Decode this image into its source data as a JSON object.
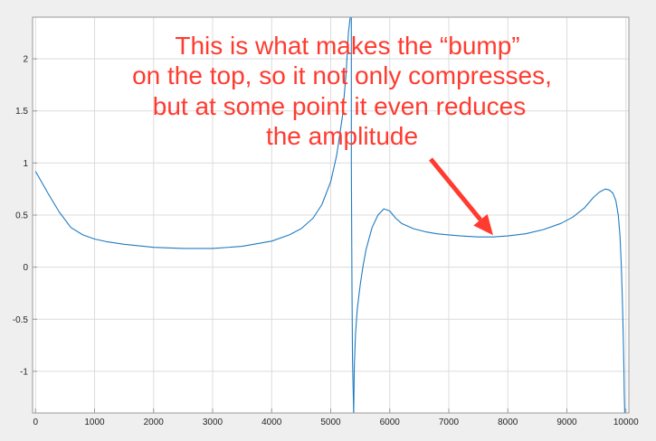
{
  "colors": {
    "figure_background": "#efefef",
    "axes_background": "#ffffff",
    "grid": "#dcdcdc",
    "axes_border": "#9a9a9a",
    "series": "#1f7bc1",
    "annotation": "#ff3b30"
  },
  "annotation": {
    "lines": [
      "This is what makes the “bump”",
      "on the top, so it not only compresses,",
      "but at some point it even reduces",
      "the amplitude"
    ],
    "arrow_target": {
      "x": 7750,
      "y": 0.29
    }
  },
  "chart_data": {
    "type": "line",
    "title": "",
    "xlabel": "",
    "ylabel": "",
    "xlim": [
      -50,
      10050
    ],
    "ylim": [
      -1.4,
      2.4
    ],
    "grid": true,
    "x_ticks": [
      0,
      1000,
      2000,
      3000,
      4000,
      5000,
      6000,
      7000,
      8000,
      9000,
      10000
    ],
    "x_tick_labels": [
      "0",
      "1000",
      "2000",
      "3000",
      "4000",
      "5000",
      "6000",
      "7000",
      "8000",
      "9000",
      "10000"
    ],
    "y_ticks": [
      -1,
      -0.5,
      0,
      0.5,
      1,
      1.5,
      2
    ],
    "y_tick_labels": [
      "-1",
      "-0.5",
      "0",
      "0.5",
      "1",
      "1.5",
      "2"
    ],
    "series": [
      {
        "name": "",
        "segments": [
          {
            "x": [
              0,
              200,
              400,
              600,
              800,
              1000,
              1200,
              1500,
              2000,
              2500,
              3000,
              3500,
              4000,
              4300,
              4500,
              4700,
              4850,
              5000,
              5100,
              5200,
              5260,
              5300,
              5330,
              5350
            ],
            "y": [
              0.92,
              0.72,
              0.53,
              0.38,
              0.31,
              0.27,
              0.245,
              0.22,
              0.19,
              0.18,
              0.18,
              0.2,
              0.25,
              0.31,
              0.37,
              0.47,
              0.6,
              0.82,
              1.07,
              1.45,
              1.86,
              2.25,
              2.4,
              2.4
            ]
          },
          {
            "x": [
              5350,
              5350,
              5360,
              5370,
              5390
            ],
            "y": [
              2.4,
              1.0,
              -0.2,
              -0.9,
              -1.4
            ]
          },
          {
            "x": [
              5390,
              5400,
              5420,
              5450,
              5500,
              5550,
              5600,
              5700,
              5800,
              5900,
              6000,
              6100,
              6200,
              6400,
              6600,
              6800,
              7000,
              7200,
              7500,
              7750,
              8000,
              8300,
              8600,
              8900,
              9100,
              9300,
              9450,
              9550,
              9650,
              9720,
              9780,
              9830,
              9870,
              9900,
              9920,
              9940,
              9955,
              9965,
              9972,
              9980
            ],
            "y": [
              -1.4,
              -0.95,
              -0.64,
              -0.4,
              -0.17,
              0.02,
              0.17,
              0.38,
              0.5,
              0.56,
              0.54,
              0.47,
              0.42,
              0.37,
              0.34,
              0.32,
              0.31,
              0.3,
              0.29,
              0.29,
              0.3,
              0.32,
              0.36,
              0.42,
              0.48,
              0.57,
              0.67,
              0.72,
              0.75,
              0.74,
              0.71,
              0.64,
              0.5,
              0.3,
              0.05,
              -0.3,
              -0.65,
              -0.95,
              -1.2,
              -1.4
            ]
          }
        ]
      }
    ]
  }
}
